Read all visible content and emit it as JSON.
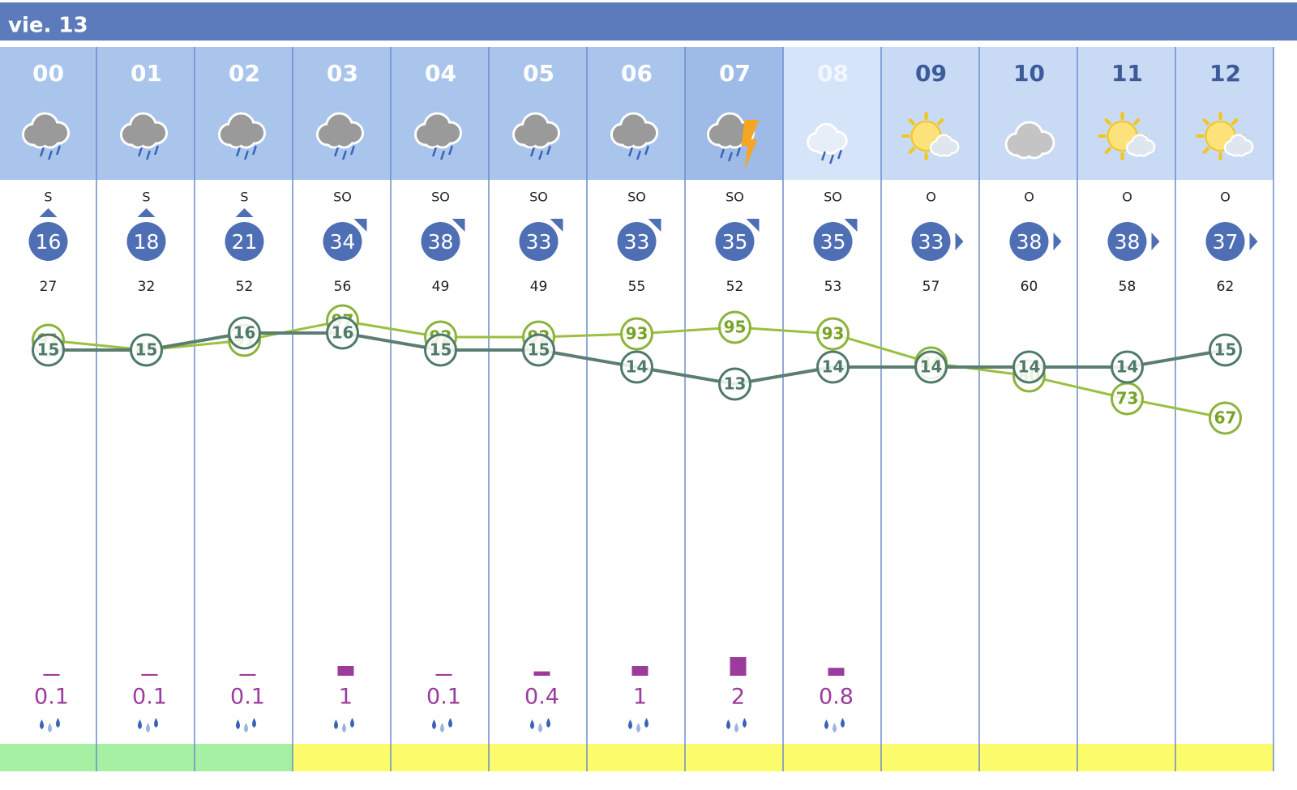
{
  "header": {
    "title": "vie. 13"
  },
  "hours": [
    {
      "hour": "00",
      "hour_color": "#ffffff",
      "header_color": "#aac5ec",
      "icon": "rain",
      "wind_dir": "S",
      "wind_arrow": "up",
      "wind_speed": 16,
      "gust": 27,
      "temperature": 15,
      "humidity": 91,
      "precipitation": 0.1,
      "strip_color": "#a6f0a4"
    },
    {
      "hour": "01",
      "hour_color": "#ffffff",
      "header_color": "#aac5ec",
      "icon": "rain",
      "wind_dir": "S",
      "wind_arrow": "up",
      "wind_speed": 18,
      "gust": 32,
      "temperature": 15,
      "humidity": 88,
      "precipitation": 0.1,
      "strip_color": "#a6f0a4"
    },
    {
      "hour": "02",
      "hour_color": "#ffffff",
      "header_color": "#aac5ec",
      "icon": "rain",
      "wind_dir": "S",
      "wind_arrow": "up",
      "wind_speed": 21,
      "gust": 52,
      "temperature": 16,
      "humidity": 91,
      "precipitation": 0.1,
      "strip_color": "#a6f0a4"
    },
    {
      "hour": "03",
      "hour_color": "#ffffff",
      "header_color": "#aac5ec",
      "icon": "rain",
      "wind_dir": "SO",
      "wind_arrow": "up-right",
      "wind_speed": 34,
      "gust": 56,
      "temperature": 16,
      "humidity": 97,
      "precipitation": 1,
      "strip_color": "#fcfc6c"
    },
    {
      "hour": "04",
      "hour_color": "#ffffff",
      "header_color": "#aac5ec",
      "icon": "rain",
      "wind_dir": "SO",
      "wind_arrow": "up-right",
      "wind_speed": 38,
      "gust": 49,
      "temperature": 15,
      "humidity": 92,
      "precipitation": 0.1,
      "strip_color": "#fcfc6c"
    },
    {
      "hour": "05",
      "hour_color": "#ffffff",
      "header_color": "#aac5ec",
      "icon": "rain",
      "wind_dir": "SO",
      "wind_arrow": "up-right",
      "wind_speed": 33,
      "gust": 49,
      "temperature": 15,
      "humidity": 92,
      "precipitation": 0.4,
      "strip_color": "#fcfc6c"
    },
    {
      "hour": "06",
      "hour_color": "#ffffff",
      "header_color": "#aac5ec",
      "icon": "rain",
      "wind_dir": "SO",
      "wind_arrow": "up-right",
      "wind_speed": 33,
      "gust": 55,
      "temperature": 14,
      "humidity": 93,
      "precipitation": 1,
      "strip_color": "#fcfc6c"
    },
    {
      "hour": "07",
      "hour_color": "#ffffff",
      "header_color": "#9dbbe6",
      "icon": "storm",
      "wind_dir": "SO",
      "wind_arrow": "up-right",
      "wind_speed": 35,
      "gust": 52,
      "temperature": 13,
      "humidity": 95,
      "precipitation": 2,
      "strip_color": "#fcfc6c"
    },
    {
      "hour": "08",
      "hour_color": "#f2f6fd",
      "header_color": "#d6e4fa",
      "icon": "night-rain",
      "wind_dir": "SO",
      "wind_arrow": "up-right",
      "wind_speed": 35,
      "gust": 53,
      "temperature": 14,
      "humidity": 93,
      "precipitation": 0.8,
      "strip_color": "#fcfc6c"
    },
    {
      "hour": "09",
      "hour_color": "#3d5a99",
      "header_color": "#c8daf4",
      "icon": "sun-cloud",
      "wind_dir": "O",
      "wind_arrow": "right",
      "wind_speed": 33,
      "gust": 57,
      "temperature": 14,
      "humidity": 84,
      "strip_color": "#fcfc6c"
    },
    {
      "hour": "10",
      "hour_color": "#3d5a99",
      "header_color": "#c8daf4",
      "icon": "cloud",
      "wind_dir": "O",
      "wind_arrow": "right",
      "wind_speed": 38,
      "gust": 60,
      "temperature": 14,
      "humidity": 80,
      "strip_color": "#fcfc6c"
    },
    {
      "hour": "11",
      "hour_color": "#3d5a99",
      "header_color": "#c8daf4",
      "icon": "sun-cloud",
      "wind_dir": "O",
      "wind_arrow": "right",
      "wind_speed": 38,
      "gust": 58,
      "temperature": 14,
      "humidity": 73,
      "strip_color": "#fcfc6c"
    },
    {
      "hour": "12",
      "hour_color": "#3d5a99",
      "header_color": "#c8daf4",
      "icon": "sun-cloud",
      "wind_dir": "O",
      "wind_arrow": "right",
      "wind_speed": 37,
      "gust": 62,
      "temperature": 15,
      "humidity": 67,
      "strip_color": "#fcfc6c"
    }
  ]
}
